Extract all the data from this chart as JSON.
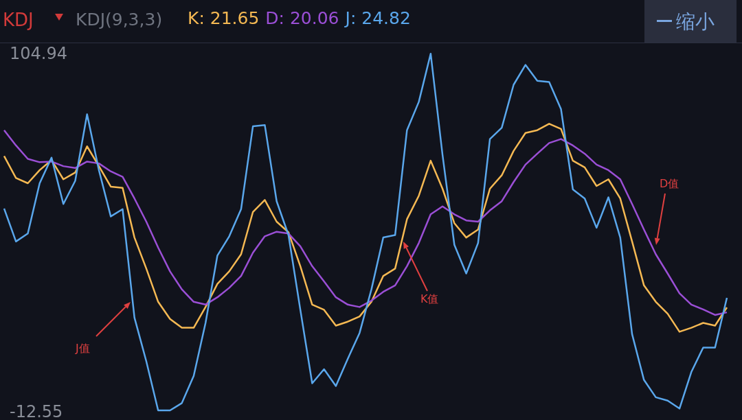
{
  "chart_data": {
    "type": "line",
    "title": "KDJ",
    "subtitle": "KDJ(9,3,3)",
    "categories": [
      null,
      null,
      null,
      null,
      null,
      null,
      null,
      null,
      null,
      null,
      null,
      null,
      null,
      null,
      null,
      null,
      null,
      null,
      null,
      null,
      null,
      null,
      null,
      null,
      null,
      null,
      null,
      null,
      null,
      null,
      null,
      null,
      null,
      null,
      null,
      null,
      null,
      null,
      null,
      null,
      null,
      null,
      null,
      null,
      null,
      null,
      null,
      null,
      null,
      null,
      null,
      null,
      null,
      null,
      null,
      null,
      null,
      null,
      null,
      null,
      null,
      null
    ],
    "series": [
      {
        "name": "K: 21.65",
        "color": "#f5b953",
        "values": [
          71.3,
          64.1,
          62.4,
          66.7,
          70.0,
          63.7,
          65.9,
          74.5,
          68.0,
          61.3,
          60.9,
          44.6,
          34.4,
          23.5,
          17.9,
          15.0,
          15.0,
          21.8,
          29.4,
          33.5,
          39.1,
          53.0,
          56.9,
          49.8,
          46.3,
          35.2,
          22.6,
          20.9,
          15.7,
          17.0,
          18.7,
          23.5,
          32.0,
          34.4,
          50.6,
          58.3,
          69.8,
          60.6,
          49.3,
          44.6,
          47.2,
          60.6,
          65.0,
          73.0,
          78.9,
          79.8,
          81.9,
          80.2,
          69.8,
          67.6,
          61.5,
          63.7,
          57.4,
          43.3,
          28.9,
          23.5,
          19.6,
          13.7,
          15.0,
          16.6,
          15.7,
          21.65
        ]
      },
      {
        "name": "D: 20.06",
        "color": "#9b4fd6",
        "values": [
          79.8,
          74.8,
          70.4,
          69.3,
          69.5,
          68.0,
          67.4,
          69.5,
          68.9,
          66.3,
          64.5,
          57.4,
          49.8,
          41.3,
          33.5,
          27.6,
          23.5,
          22.6,
          25.0,
          28.1,
          32.0,
          39.6,
          45.0,
          46.5,
          45.9,
          41.7,
          35.2,
          30.2,
          25.0,
          22.6,
          21.8,
          23.9,
          26.8,
          28.9,
          35.2,
          42.8,
          52.2,
          54.8,
          52.2,
          50.2,
          49.8,
          53.5,
          56.5,
          62.8,
          68.5,
          72.1,
          75.6,
          76.9,
          74.8,
          72.1,
          68.5,
          66.7,
          63.7,
          55.6,
          47.2,
          39.1,
          32.8,
          26.3,
          22.6,
          21.0,
          19.2,
          20.06
        ]
      },
      {
        "name": "J: 24.82",
        "color": "#5aa7ec",
        "values": [
          54.1,
          43.3,
          45.9,
          62.4,
          70.8,
          55.6,
          63.2,
          85.0,
          66.7,
          51.5,
          53.9,
          18.3,
          4.0,
          -12.1,
          -12.1,
          -9.7,
          -0.8,
          16.6,
          38.7,
          45.0,
          53.9,
          81.1,
          81.5,
          56.5,
          45.4,
          20.9,
          -3.2,
          1.4,
          -4.1,
          4.8,
          13.3,
          27.6,
          44.6,
          45.4,
          79.8,
          89.1,
          104.9,
          71.7,
          42.2,
          32.8,
          42.8,
          76.9,
          80.6,
          94.7,
          101.2,
          96.0,
          95.6,
          86.7,
          60.4,
          57.4,
          47.8,
          57.8,
          44.6,
          12.9,
          -2.1,
          -7.8,
          -8.9,
          -11.5,
          0.5,
          8.5,
          8.5,
          24.82
        ]
      }
    ],
    "ylim": [
      -12.55,
      104.94
    ],
    "yticks": [
      -12.55,
      104.94
    ],
    "tick_labels": "y",
    "legend": "top left",
    "marker": "none",
    "annotations": [
      "缩小",
      "J值",
      "K值",
      "D值"
    ]
  }
}
